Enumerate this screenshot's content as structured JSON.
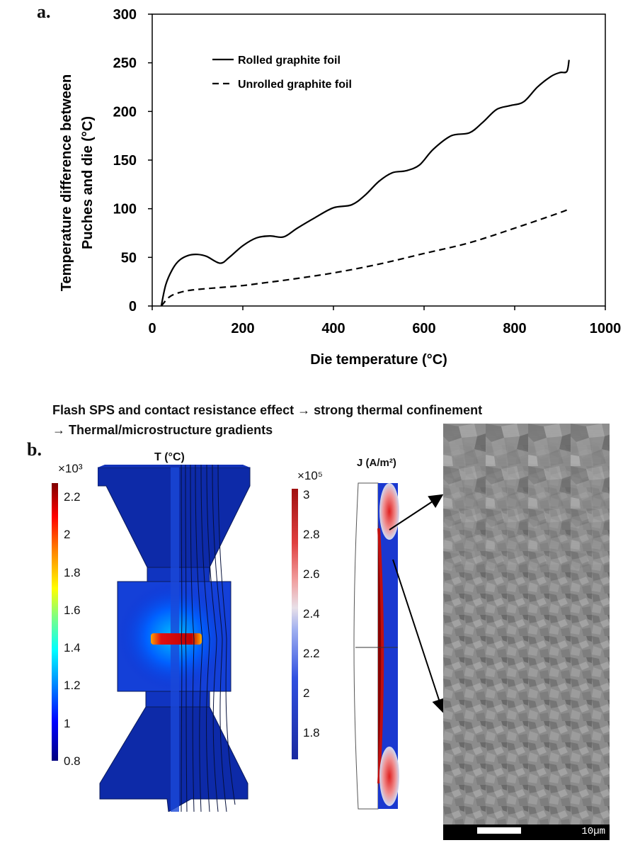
{
  "panel_a": {
    "label": "a.",
    "chart_data": {
      "type": "line",
      "xlabel": "Die temperature (°C)",
      "ylabel_line1": "Temperature difference between",
      "ylabel_line2": "Puches and die (°C)",
      "xlim": [
        0,
        1000
      ],
      "ylim": [
        0,
        300
      ],
      "xticks": [
        "0",
        "200",
        "400",
        "600",
        "800",
        "1000"
      ],
      "yticks": [
        "0",
        "50",
        "100",
        "150",
        "200",
        "250",
        "300"
      ],
      "grid": false,
      "legend_position": "top-left",
      "series": [
        {
          "name": "Rolled graphite foil",
          "style": "solid",
          "x": [
            20,
            30,
            45,
            60,
            80,
            100,
            120,
            150,
            170,
            200,
            230,
            260,
            290,
            320,
            360,
            400,
            440,
            470,
            500,
            530,
            560,
            590,
            620,
            660,
            700,
            730,
            760,
            790,
            820,
            850,
            880,
            900,
            915,
            920
          ],
          "y": [
            0,
            22,
            38,
            47,
            52,
            53,
            51,
            44,
            50,
            62,
            70,
            72,
            71,
            80,
            91,
            101,
            104,
            114,
            128,
            137,
            139,
            145,
            161,
            175,
            178,
            189,
            202,
            206,
            210,
            225,
            236,
            240,
            241,
            253
          ]
        },
        {
          "name": "Unrolled graphite foil",
          "style": "dashed",
          "x": [
            20,
            40,
            70,
            100,
            150,
            200,
            250,
            300,
            400,
            500,
            600,
            700,
            800,
            900,
            920
          ],
          "y": [
            0,
            10,
            15,
            17,
            19,
            21,
            24,
            27,
            34,
            43,
            54,
            65,
            80,
            96,
            100
          ]
        }
      ]
    }
  },
  "caption": {
    "line1": "Flash SPS and contact resistance effect → strong thermal confinement",
    "line2": "→ Thermal/microstructure gradients"
  },
  "panel_b": {
    "label": "b.",
    "colorbar_T": {
      "multiplier": "×10³",
      "ticks": [
        "2.2",
        "2",
        "1.8",
        "1.6",
        "1.4",
        "1.2",
        "1",
        "0.8"
      ]
    },
    "title_T": "T (°C)",
    "colorbar_J": {
      "multiplier": "×10⁵",
      "ticks": [
        "3",
        "2.8",
        "2.6",
        "2.4",
        "2.2",
        "2",
        "1.8"
      ]
    },
    "title_J": "J (A/m²)",
    "scale_bar": "10µm",
    "colors": {
      "jet_low": "#0a1a9c",
      "jet_high": "#8b0000",
      "hot": "#e02a10"
    }
  }
}
